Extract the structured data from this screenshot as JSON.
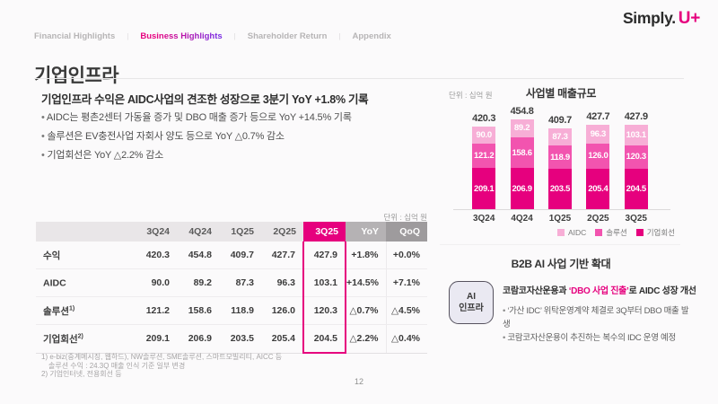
{
  "brand": {
    "simply": "Simply.",
    "uplus": "U+"
  },
  "colors": {
    "accent": "#e6007e"
  },
  "nav": {
    "separator": "|",
    "items": [
      {
        "label": "Financial Highlights"
      },
      {
        "label": "Business Highlights"
      },
      {
        "label": "Shareholder Return"
      },
      {
        "label": "Appendix"
      }
    ]
  },
  "page": {
    "title": "기업인프라",
    "number": "12"
  },
  "summary": {
    "headline": "기업인프라 수익은 AIDC사업의 견조한 성장으로 3분기 YoY +1.8% 기록",
    "bullets": [
      "AIDC는 평촌2센터 가동율 증가 및 DBO 매출 증가 등으로 YoY +14.5% 기록",
      "솔루션은 EV충전사업 자회사 양도 등으로 YoY △0.7% 감소",
      "기업회선은 YoY △2.2% 감소"
    ]
  },
  "table": {
    "unit": "단위 : 십억 원",
    "columns": [
      "3Q24",
      "4Q24",
      "1Q25",
      "2Q25",
      "3Q25",
      "YoY",
      "QoQ"
    ],
    "rows": [
      {
        "label": "수익",
        "sup": "",
        "values": [
          "420.3",
          "454.8",
          "409.7",
          "427.7",
          "427.9"
        ],
        "yoy": "+1.8%",
        "qoq": "+0.0%"
      },
      {
        "label": "AIDC",
        "sup": "",
        "values": [
          "90.0",
          "89.2",
          "87.3",
          "96.3",
          "103.1"
        ],
        "yoy": "+14.5%",
        "qoq": "+7.1%"
      },
      {
        "label": "솔루션",
        "sup": "1)",
        "values": [
          "121.2",
          "158.6",
          "118.9",
          "126.0",
          "120.3"
        ],
        "yoy": "△0.7%",
        "qoq": "△4.5%"
      },
      {
        "label": "기업회선",
        "sup": "2)",
        "values": [
          "209.1",
          "206.9",
          "203.5",
          "205.4",
          "204.5"
        ],
        "yoy": "△2.2%",
        "qoq": "△0.4%"
      }
    ],
    "footnotes": [
      "1) e-biz(중계메시징, 웹하드), NW솔루션, SME솔루션, 스마트모빌리티, AICC 등",
      "솔루션 수익 : 24.3Q 매출 인식 기준 일부 변경",
      "2) 기업인터넷, 전용회선 등"
    ]
  },
  "chart_data": {
    "type": "bar",
    "stacked": true,
    "title": "사업별 매출규모",
    "unit": "단위 : 십억 원",
    "categories": [
      "3Q24",
      "4Q24",
      "1Q25",
      "2Q25",
      "3Q25"
    ],
    "series": [
      {
        "name": "AIDC",
        "color": "#f7aed6",
        "values": [
          "90.0",
          "89.2",
          "87.3",
          "96.3",
          "103.1"
        ]
      },
      {
        "name": "솔루션",
        "color": "#f254af",
        "values": [
          "121.2",
          "158.6",
          "118.9",
          "126.0",
          "120.3"
        ]
      },
      {
        "name": "기업회선",
        "color": "#e6007e",
        "values": [
          "209.1",
          "206.9",
          "203.5",
          "205.4",
          "204.5"
        ]
      }
    ],
    "totals": [
      "420.3",
      "454.8",
      "409.7",
      "427.7",
      "427.9"
    ],
    "ylim": [
      0,
      500
    ],
    "grid": false,
    "legend_position": "bottom-right"
  },
  "b2b": {
    "title": "B2B AI 사업 기반 확대",
    "badge": {
      "line1": "AI",
      "line2": "인프라"
    },
    "headline": {
      "pre": "코람코자산운용과 ",
      "accent": "‘DBO 사업 진출’",
      "post": "로 AIDC 성장 개선"
    },
    "bullets": [
      "‘가산 IDC’ 위탁운영계약 체결로 3Q부터 DBO 매출 발생",
      "코람코자산운용이 추진하는 복수의 IDC 운영 예정"
    ]
  }
}
